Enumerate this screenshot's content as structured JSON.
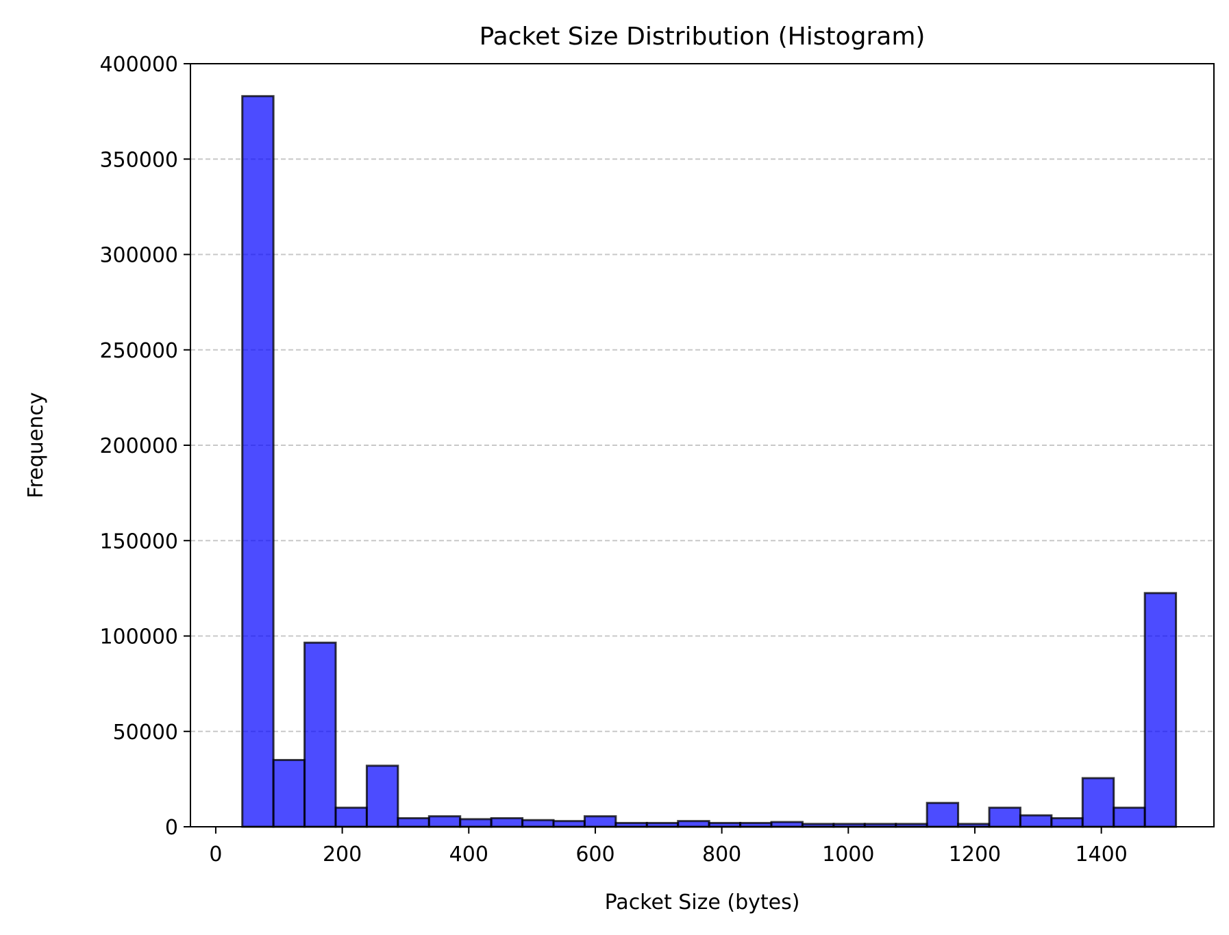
{
  "chart_data": {
    "type": "bar",
    "title": "Packet Size Distribution (Histogram)",
    "xlabel": "Packet Size (bytes)",
    "ylabel": "Frequency",
    "xlim": [
      -40,
      1578
    ],
    "ylim": [
      0,
      400000
    ],
    "xticks": [
      0,
      200,
      400,
      600,
      800,
      1000,
      1200,
      1400
    ],
    "yticks": [
      0,
      50000,
      100000,
      150000,
      200000,
      250000,
      300000,
      350000,
      400000
    ],
    "grid": {
      "axis": "y",
      "style": "dashed",
      "color": "#c8c8c8"
    },
    "bar_color": "#0000ff",
    "bar_opacity": 0.7,
    "edge_color": "#000000",
    "bins": [
      {
        "x0": 42,
        "x1": 91.2,
        "value": 383000
      },
      {
        "x0": 91.2,
        "x1": 140.4,
        "value": 35000
      },
      {
        "x0": 140.4,
        "x1": 189.6,
        "value": 96500
      },
      {
        "x0": 189.6,
        "x1": 238.8,
        "value": 10000
      },
      {
        "x0": 238.8,
        "x1": 288,
        "value": 32000
      },
      {
        "x0": 288,
        "x1": 337.2,
        "value": 4500
      },
      {
        "x0": 337.2,
        "x1": 386.4,
        "value": 5500
      },
      {
        "x0": 386.4,
        "x1": 435.6,
        "value": 4000
      },
      {
        "x0": 435.6,
        "x1": 484.8,
        "value": 4500
      },
      {
        "x0": 484.8,
        "x1": 534,
        "value": 3500
      },
      {
        "x0": 534,
        "x1": 583.2,
        "value": 3000
      },
      {
        "x0": 583.2,
        "x1": 632.4,
        "value": 5500
      },
      {
        "x0": 632.4,
        "x1": 681.6,
        "value": 2000
      },
      {
        "x0": 681.6,
        "x1": 730.8,
        "value": 2000
      },
      {
        "x0": 730.8,
        "x1": 780,
        "value": 3000
      },
      {
        "x0": 780,
        "x1": 829.2,
        "value": 2000
      },
      {
        "x0": 829.2,
        "x1": 878.4,
        "value": 2000
      },
      {
        "x0": 878.4,
        "x1": 927.6,
        "value": 2500
      },
      {
        "x0": 927.6,
        "x1": 976.8,
        "value": 1500
      },
      {
        "x0": 976.8,
        "x1": 1026,
        "value": 1500
      },
      {
        "x0": 1026,
        "x1": 1075.2,
        "value": 1500
      },
      {
        "x0": 1075.2,
        "x1": 1124.4,
        "value": 1500
      },
      {
        "x0": 1124.4,
        "x1": 1173.6,
        "value": 12500
      },
      {
        "x0": 1173.6,
        "x1": 1222.8,
        "value": 1500
      },
      {
        "x0": 1222.8,
        "x1": 1272,
        "value": 10000
      },
      {
        "x0": 1272,
        "x1": 1321.2,
        "value": 6000
      },
      {
        "x0": 1321.2,
        "x1": 1370.4,
        "value": 4500
      },
      {
        "x0": 1370.4,
        "x1": 1419.6,
        "value": 25500
      },
      {
        "x0": 1419.6,
        "x1": 1468.8,
        "value": 10000
      },
      {
        "x0": 1468.8,
        "x1": 1518,
        "value": 122500
      }
    ]
  }
}
